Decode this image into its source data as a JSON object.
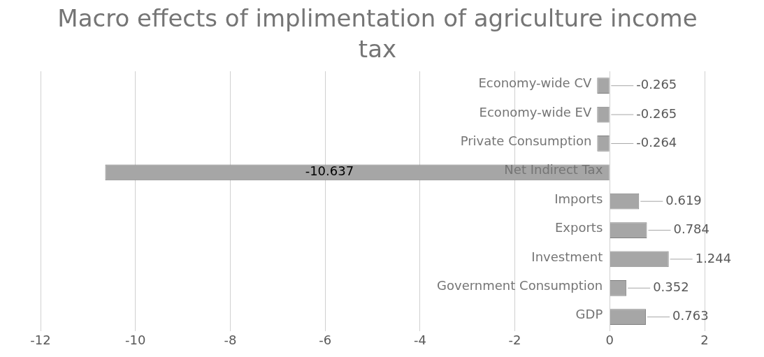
{
  "chart_data": {
    "type": "bar",
    "orientation": "horizontal",
    "title": "Macro effects of implimentation of agriculture income tax",
    "categories": [
      "Economy-wide CV",
      "Economy-wide EV",
      "Private Consumption",
      "Net Indirect Tax",
      "Imports",
      "Exports",
      "Investment",
      "Government Consumption",
      "GDP"
    ],
    "values": [
      -0.265,
      -0.265,
      -0.264,
      -10.637,
      0.619,
      0.784,
      1.244,
      0.352,
      0.763
    ],
    "color": "#a6a6a6",
    "xlim": [
      -12,
      2
    ],
    "xticks": [
      -12,
      -10,
      -8,
      -6,
      -4,
      -2,
      0,
      2
    ],
    "grid": "x",
    "data_labels": true,
    "legend": false
  }
}
